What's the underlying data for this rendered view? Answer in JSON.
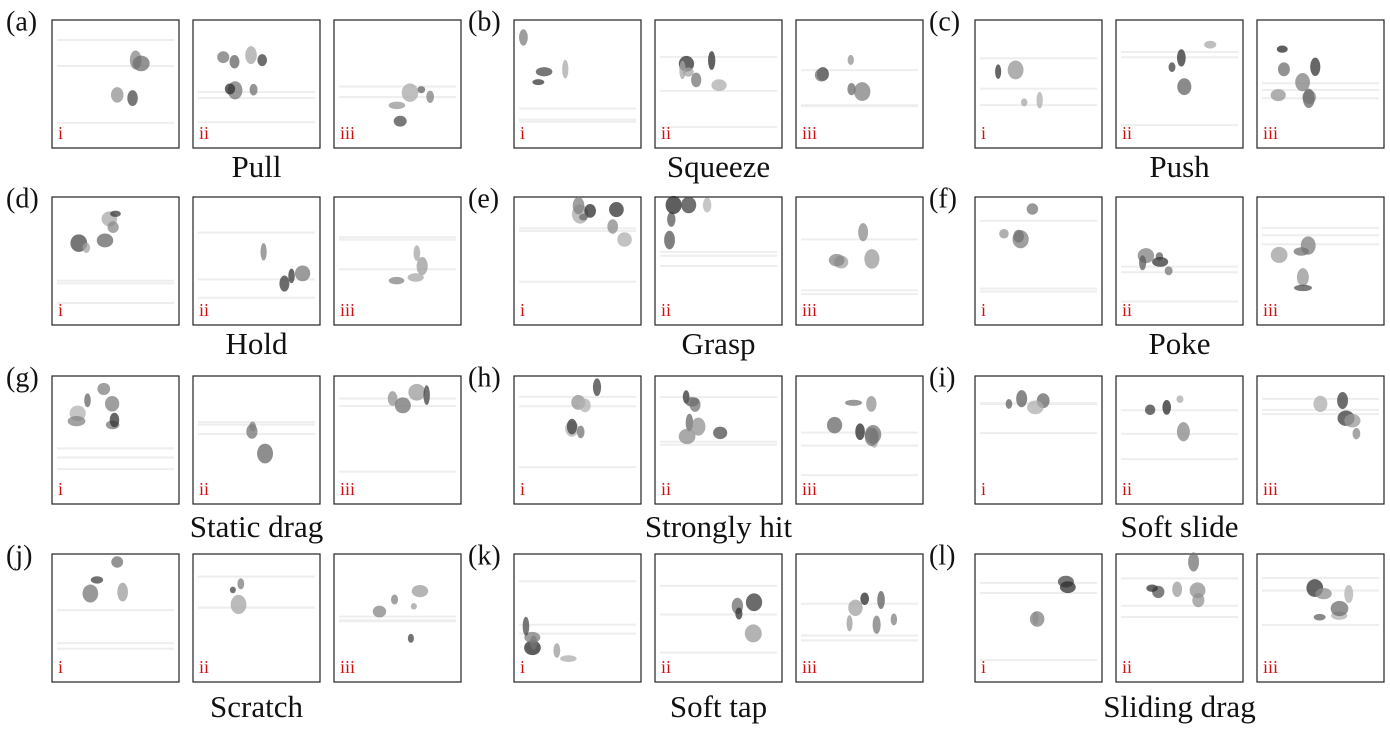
{
  "panels": [
    {
      "letter": "(a)",
      "caption": "Pull",
      "images": [
        "i",
        "ii",
        "iii"
      ]
    },
    {
      "letter": "(b)",
      "caption": "Squeeze",
      "images": [
        "i",
        "ii",
        "iii"
      ]
    },
    {
      "letter": "(c)",
      "caption": "Push",
      "images": [
        "i",
        "ii",
        "iii"
      ]
    },
    {
      "letter": "(d)",
      "caption": "Hold",
      "images": [
        "i",
        "ii",
        "iii"
      ]
    },
    {
      "letter": "(e)",
      "caption": "Grasp",
      "images": [
        "i",
        "ii",
        "iii"
      ]
    },
    {
      "letter": "(f)",
      "caption": "Poke",
      "images": [
        "i",
        "ii",
        "iii"
      ]
    },
    {
      "letter": "(g)",
      "caption": "Static drag",
      "images": [
        "i",
        "ii",
        "iii"
      ]
    },
    {
      "letter": "(h)",
      "caption": "Strongly hit",
      "images": [
        "i",
        "ii",
        "iii"
      ]
    },
    {
      "letter": "(i)",
      "caption": "Soft slide",
      "images": [
        "i",
        "ii",
        "iii"
      ]
    },
    {
      "letter": "(j)",
      "caption": "Scratch",
      "images": [
        "i",
        "ii",
        "iii"
      ]
    },
    {
      "letter": "(k)",
      "caption": "Soft tap",
      "images": [
        "i",
        "ii",
        "iii"
      ]
    },
    {
      "letter": "(l)",
      "caption": "Sliding drag",
      "images": [
        "i",
        "ii",
        "iii"
      ]
    }
  ]
}
